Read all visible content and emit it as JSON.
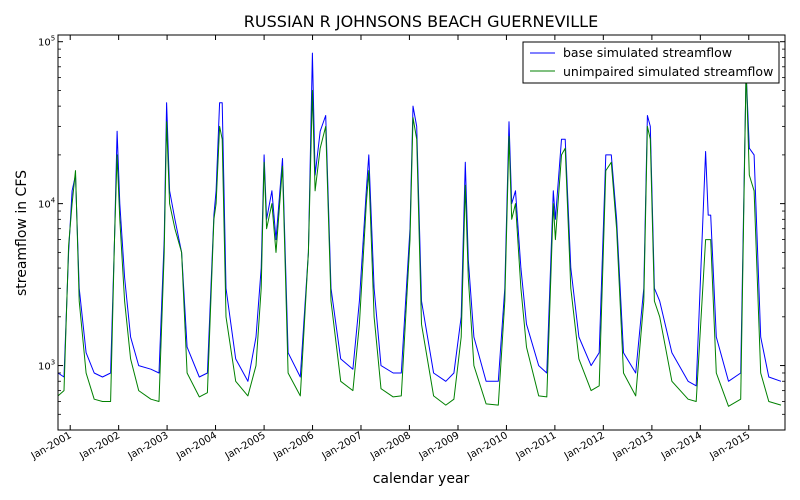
{
  "chart_data": {
    "type": "line",
    "title": "RUSSIAN R JOHNSONS BEACH GUERNEVILLE",
    "xlabel": "calendar year",
    "ylabel": "streamflow in CFS",
    "yscale": "log",
    "ylim": [
      400,
      110000
    ],
    "xlim": [
      "2000-10-01",
      "2015-10-01"
    ],
    "y_ticks": [
      {
        "value": 1000,
        "base": "10",
        "exp": "3"
      },
      {
        "value": 10000,
        "base": "10",
        "exp": "4"
      },
      {
        "value": 100000,
        "base": "10",
        "exp": "5"
      }
    ],
    "x_ticks": [
      "Jan-2001",
      "Jan-2002",
      "Jan-2003",
      "Jan-2004",
      "Jan-2005",
      "Jan-2006",
      "Jan-2007",
      "Jan-2008",
      "Jan-2009",
      "Jan-2010",
      "Jan-2011",
      "Jan-2012",
      "Jan-2013",
      "Jan-2014",
      "Jan-2015"
    ],
    "grid": false,
    "legend_position": "top-right",
    "series": [
      {
        "name": "base simulated streamflow",
        "color": "#0000ff",
        "points": [
          [
            "2000-10-01",
            900
          ],
          [
            "2000-11-15",
            850
          ],
          [
            "2000-12-20",
            5000
          ],
          [
            "2001-01-15",
            12000
          ],
          [
            "2001-02-10",
            15000
          ],
          [
            "2001-03-10",
            3000
          ],
          [
            "2001-05-01",
            1200
          ],
          [
            "2001-07-01",
            900
          ],
          [
            "2001-09-01",
            850
          ],
          [
            "2001-11-01",
            900
          ],
          [
            "2001-12-01",
            6000
          ],
          [
            "2001-12-20",
            28000
          ],
          [
            "2002-01-10",
            10000
          ],
          [
            "2002-02-15",
            3500
          ],
          [
            "2002-04-01",
            1500
          ],
          [
            "2002-06-01",
            1000
          ],
          [
            "2002-09-01",
            950
          ],
          [
            "2002-11-01",
            900
          ],
          [
            "2002-12-10",
            6000
          ],
          [
            "2002-12-28",
            42000
          ],
          [
            "2003-01-20",
            12000
          ],
          [
            "2003-03-01",
            8000
          ],
          [
            "2003-04-20",
            5000
          ],
          [
            "2003-06-01",
            1300
          ],
          [
            "2003-09-01",
            850
          ],
          [
            "2003-11-01",
            900
          ],
          [
            "2003-12-20",
            8500
          ],
          [
            "2004-01-05",
            12000
          ],
          [
            "2004-02-01",
            42000
          ],
          [
            "2004-02-20",
            42000
          ],
          [
            "2004-03-20",
            3000
          ],
          [
            "2004-06-01",
            1100
          ],
          [
            "2004-09-01",
            800
          ],
          [
            "2004-11-01",
            1500
          ],
          [
            "2004-12-10",
            4000
          ],
          [
            "2005-01-01",
            20000
          ],
          [
            "2005-01-20",
            8000
          ],
          [
            "2005-03-01",
            12000
          ],
          [
            "2005-04-01",
            6000
          ],
          [
            "2005-05-20",
            19000
          ],
          [
            "2005-07-01",
            1200
          ],
          [
            "2005-10-01",
            850
          ],
          [
            "2005-12-01",
            5000
          ],
          [
            "2005-12-31",
            85000
          ],
          [
            "2006-01-20",
            15000
          ],
          [
            "2006-02-28",
            28000
          ],
          [
            "2006-04-10",
            35000
          ],
          [
            "2006-05-20",
            3000
          ],
          [
            "2006-08-01",
            1100
          ],
          [
            "2006-11-01",
            950
          ],
          [
            "2006-12-20",
            2500
          ],
          [
            "2007-02-10",
            12000
          ],
          [
            "2007-03-01",
            20000
          ],
          [
            "2007-04-10",
            3000
          ],
          [
            "2007-06-01",
            1000
          ],
          [
            "2007-09-01",
            900
          ],
          [
            "2007-11-01",
            900
          ],
          [
            "2008-01-05",
            7000
          ],
          [
            "2008-01-28",
            40000
          ],
          [
            "2008-02-25",
            30000
          ],
          [
            "2008-04-01",
            2500
          ],
          [
            "2008-07-01",
            900
          ],
          [
            "2008-10-01",
            800
          ],
          [
            "2008-12-01",
            900
          ],
          [
            "2009-01-25",
            2000
          ],
          [
            "2009-02-25",
            18000
          ],
          [
            "2009-03-20",
            4500
          ],
          [
            "2009-05-01",
            1500
          ],
          [
            "2009-08-01",
            800
          ],
          [
            "2009-11-01",
            800
          ],
          [
            "2009-12-20",
            3000
          ],
          [
            "2010-01-20",
            32000
          ],
          [
            "2010-02-10",
            10000
          ],
          [
            "2010-03-10",
            12000
          ],
          [
            "2010-04-20",
            4000
          ],
          [
            "2010-06-01",
            1800
          ],
          [
            "2010-09-01",
            1000
          ],
          [
            "2010-11-01",
            900
          ],
          [
            "2010-12-20",
            12000
          ],
          [
            "2011-01-05",
            8000
          ],
          [
            "2011-02-20",
            25000
          ],
          [
            "2011-03-20",
            25000
          ],
          [
            "2011-05-01",
            4000
          ],
          [
            "2011-07-01",
            1500
          ],
          [
            "2011-10-01",
            1000
          ],
          [
            "2011-12-01",
            1200
          ],
          [
            "2012-01-20",
            20000
          ],
          [
            "2012-03-01",
            20000
          ],
          [
            "2012-04-10",
            8000
          ],
          [
            "2012-06-01",
            1200
          ],
          [
            "2012-09-01",
            900
          ],
          [
            "2012-11-01",
            3000
          ],
          [
            "2012-11-28",
            35000
          ],
          [
            "2012-12-20",
            30000
          ],
          [
            "2013-01-20",
            3000
          ],
          [
            "2013-03-01",
            2500
          ],
          [
            "2013-06-01",
            1200
          ],
          [
            "2013-10-01",
            800
          ],
          [
            "2013-12-01",
            750
          ],
          [
            "2014-02-10",
            21000
          ],
          [
            "2014-03-01",
            8500
          ],
          [
            "2014-03-20",
            8500
          ],
          [
            "2014-05-01",
            1500
          ],
          [
            "2014-08-01",
            800
          ],
          [
            "2014-11-01",
            900
          ],
          [
            "2014-12-12",
            66000
          ],
          [
            "2015-01-05",
            22000
          ],
          [
            "2015-02-10",
            20000
          ],
          [
            "2015-04-01",
            1500
          ],
          [
            "2015-06-01",
            850
          ],
          [
            "2015-09-01",
            800
          ]
        ]
      },
      {
        "name": "unimpaired simulated streamflow",
        "color": "#008000",
        "points": [
          [
            "2000-10-01",
            650
          ],
          [
            "2000-11-15",
            700
          ],
          [
            "2000-12-20",
            5500
          ],
          [
            "2001-01-15",
            10000
          ],
          [
            "2001-02-10",
            16000
          ],
          [
            "2001-03-10",
            2500
          ],
          [
            "2001-05-01",
            900
          ],
          [
            "2001-07-01",
            620
          ],
          [
            "2001-09-01",
            600
          ],
          [
            "2001-11-01",
            600
          ],
          [
            "2001-12-01",
            6000
          ],
          [
            "2001-12-20",
            20000
          ],
          [
            "2002-01-10",
            8000
          ],
          [
            "2002-02-15",
            2500
          ],
          [
            "2002-04-01",
            1100
          ],
          [
            "2002-06-01",
            700
          ],
          [
            "2002-09-01",
            620
          ],
          [
            "2002-11-01",
            600
          ],
          [
            "2002-12-10",
            5000
          ],
          [
            "2002-12-28",
            32000
          ],
          [
            "2003-01-20",
            10000
          ],
          [
            "2003-03-01",
            7000
          ],
          [
            "2003-04-20",
            5000
          ],
          [
            "2003-06-01",
            900
          ],
          [
            "2003-09-01",
            640
          ],
          [
            "2003-11-01",
            680
          ],
          [
            "2003-12-20",
            8000
          ],
          [
            "2004-01-05",
            10000
          ],
          [
            "2004-02-01",
            30000
          ],
          [
            "2004-02-20",
            25000
          ],
          [
            "2004-03-20",
            2000
          ],
          [
            "2004-06-01",
            800
          ],
          [
            "2004-09-01",
            650
          ],
          [
            "2004-11-01",
            1000
          ],
          [
            "2004-12-10",
            3000
          ],
          [
            "2005-01-01",
            18000
          ],
          [
            "2005-01-20",
            7000
          ],
          [
            "2005-03-01",
            10000
          ],
          [
            "2005-04-01",
            5000
          ],
          [
            "2005-05-20",
            17000
          ],
          [
            "2005-07-01",
            900
          ],
          [
            "2005-10-01",
            650
          ],
          [
            "2005-12-01",
            5000
          ],
          [
            "2005-12-31",
            50000
          ],
          [
            "2006-01-20",
            12000
          ],
          [
            "2006-02-28",
            22000
          ],
          [
            "2006-04-10",
            30000
          ],
          [
            "2006-05-20",
            2500
          ],
          [
            "2006-08-01",
            800
          ],
          [
            "2006-11-01",
            700
          ],
          [
            "2006-12-20",
            1800
          ],
          [
            "2007-02-10",
            10000
          ],
          [
            "2007-03-01",
            16000
          ],
          [
            "2007-04-10",
            2000
          ],
          [
            "2007-06-01",
            720
          ],
          [
            "2007-09-01",
            640
          ],
          [
            "2007-11-01",
            650
          ],
          [
            "2008-01-05",
            6000
          ],
          [
            "2008-01-28",
            34000
          ],
          [
            "2008-02-25",
            25000
          ],
          [
            "2008-04-01",
            1800
          ],
          [
            "2008-07-01",
            650
          ],
          [
            "2008-10-01",
            570
          ],
          [
            "2008-12-01",
            620
          ],
          [
            "2009-01-25",
            1500
          ],
          [
            "2009-02-25",
            13000
          ],
          [
            "2009-03-20",
            3500
          ],
          [
            "2009-05-01",
            1000
          ],
          [
            "2009-08-01",
            580
          ],
          [
            "2009-11-01",
            570
          ],
          [
            "2009-12-20",
            2500
          ],
          [
            "2010-01-20",
            26000
          ],
          [
            "2010-02-10",
            8000
          ],
          [
            "2010-03-10",
            10000
          ],
          [
            "2010-04-20",
            3000
          ],
          [
            "2010-06-01",
            1300
          ],
          [
            "2010-09-01",
            650
          ],
          [
            "2010-11-01",
            640
          ],
          [
            "2010-12-20",
            10000
          ],
          [
            "2011-01-05",
            6000
          ],
          [
            "2011-02-20",
            20000
          ],
          [
            "2011-03-20",
            22000
          ],
          [
            "2011-05-01",
            3000
          ],
          [
            "2011-07-01",
            1100
          ],
          [
            "2011-10-01",
            700
          ],
          [
            "2011-12-01",
            750
          ],
          [
            "2012-01-20",
            16000
          ],
          [
            "2012-03-01",
            18000
          ],
          [
            "2012-04-10",
            7000
          ],
          [
            "2012-06-01",
            900
          ],
          [
            "2012-09-01",
            650
          ],
          [
            "2012-11-01",
            2500
          ],
          [
            "2012-11-28",
            30000
          ],
          [
            "2012-12-20",
            25000
          ],
          [
            "2013-01-20",
            2500
          ],
          [
            "2013-03-01",
            2000
          ],
          [
            "2013-06-01",
            800
          ],
          [
            "2013-10-01",
            620
          ],
          [
            "2013-12-01",
            600
          ],
          [
            "2014-02-10",
            6000
          ],
          [
            "2014-03-01",
            6000
          ],
          [
            "2014-03-20",
            6000
          ],
          [
            "2014-05-01",
            900
          ],
          [
            "2014-08-01",
            560
          ],
          [
            "2014-11-01",
            620
          ],
          [
            "2014-12-12",
            68000
          ],
          [
            "2015-01-05",
            15000
          ],
          [
            "2015-02-10",
            12000
          ],
          [
            "2015-04-01",
            900
          ],
          [
            "2015-06-01",
            600
          ],
          [
            "2015-09-01",
            570
          ]
        ]
      }
    ]
  }
}
